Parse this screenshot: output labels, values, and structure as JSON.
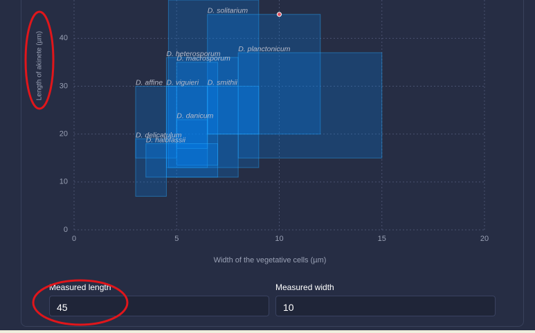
{
  "chart_data": {
    "type": "range-box",
    "x_label": "Width of the vegetative cells (µm)",
    "y_label": "Length of akinete (µm)",
    "xlim": [
      0,
      20
    ],
    "ylim": [
      0,
      48
    ],
    "xticks": [
      0,
      5,
      10,
      15,
      20
    ],
    "yticks": [
      0,
      10,
      20,
      30,
      40
    ],
    "grid": true,
    "boxes": [
      {
        "name": null,
        "x": [
          4.6,
          9
        ],
        "y": [
          13,
          48
        ]
      },
      {
        "name": "D. solitarium",
        "x": [
          6.5,
          12
        ],
        "y": [
          20,
          45
        ]
      },
      {
        "name": "D. heterosporum",
        "x": [
          4.5,
          8
        ],
        "y": [
          11,
          36
        ]
      },
      {
        "name": "D. macrosporum",
        "x": [
          5,
          7
        ],
        "y": [
          13.5,
          35
        ]
      },
      {
        "name": "D. planctonicum",
        "x": [
          8,
          15
        ],
        "y": [
          15,
          37
        ]
      },
      {
        "name": "D. affine",
        "x": [
          3,
          5
        ],
        "y": [
          15,
          30
        ]
      },
      {
        "name": "D. viguieri",
        "x": [
          4.5,
          6.5
        ],
        "y": [
          13,
          30
        ]
      },
      {
        "name": "D. smithii",
        "x": [
          6.5,
          9
        ],
        "y": [
          20,
          30
        ]
      },
      {
        "name": "D. danicum",
        "x": [
          5,
          6.5
        ],
        "y": [
          17,
          23
        ]
      },
      {
        "name": "D. delicatulum",
        "x": [
          3,
          4.5
        ],
        "y": [
          7,
          19
        ]
      },
      {
        "name": "D. halbfassii",
        "x": [
          3.5,
          7
        ],
        "y": [
          11,
          18
        ]
      }
    ]
  },
  "form": {
    "length": {
      "label": "Measured length",
      "value": 45
    },
    "width": {
      "label": "Measured width",
      "value": 10
    }
  }
}
